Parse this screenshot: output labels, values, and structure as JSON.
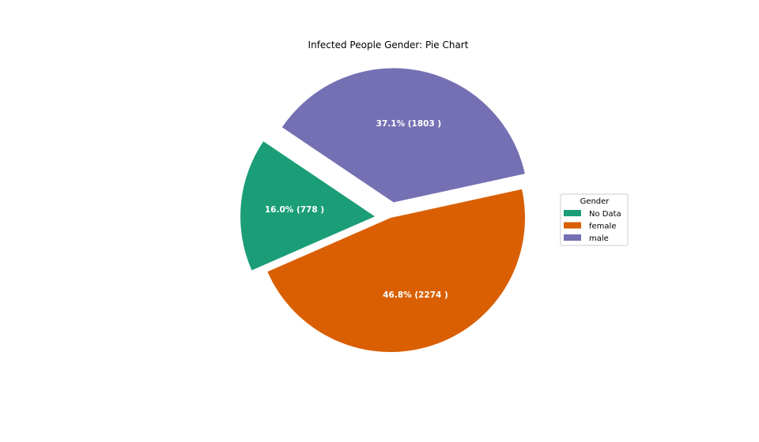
{
  "chart_data": {
    "type": "pie",
    "title": "Infected People Gender: Pie Chart",
    "legend": {
      "title": "Gender",
      "placement": "right"
    },
    "slices": [
      {
        "category": "No Data",
        "value": 778,
        "percent": 16.0,
        "label": "16.0% (778 )",
        "color": "#1b9e77",
        "exploded": true
      },
      {
        "category": "female",
        "value": 2274,
        "percent": 46.8,
        "label": "46.8% (2274 )",
        "color": "#d95f02",
        "exploded": false
      },
      {
        "category": "male",
        "value": 1803,
        "percent": 37.1,
        "label": "37.1% (1803 )",
        "color": "#7570b3",
        "exploded": true
      }
    ]
  }
}
